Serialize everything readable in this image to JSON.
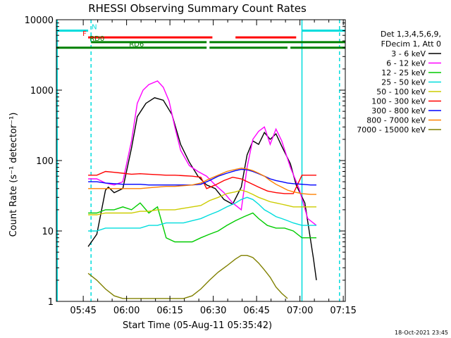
{
  "chart_data": {
    "type": "line",
    "title": "RHESSI Observing Summary Count Rates",
    "xlabel": "Start Time (05-Aug-11 05:35:42)",
    "ylabel": "Count Rate (s⁻¹ detector⁻¹)",
    "yscale": "log",
    "ylim": [
      1,
      10000
    ],
    "xlim": [
      0,
      100
    ],
    "x_unit": "minutes after 05:35:42",
    "x_ticks": [
      {
        "label": "05:45",
        "value": 9.3
      },
      {
        "label": "06:00",
        "value": 24.3
      },
      {
        "label": "06:15",
        "value": 39.3
      },
      {
        "label": "06:30",
        "value": 54.3
      },
      {
        "label": "06:45",
        "value": 69.3
      },
      {
        "label": "07:00",
        "value": 84.3
      },
      {
        "label": "07:15",
        "value": 99.3
      }
    ],
    "y_ticks": [
      {
        "label": "1",
        "value": 1
      },
      {
        "label": "10",
        "value": 10
      },
      {
        "label": "100",
        "value": 100
      },
      {
        "label": "1000",
        "value": 1000
      },
      {
        "label": "10000",
        "value": 10000
      }
    ],
    "legend_position": "right",
    "legend_header": [
      "Det 1,3,4,5,6,9,",
      "FDecim 1, Att 0"
    ],
    "series": [
      {
        "name": "3 - 6 keV",
        "color": "#000000",
        "points": [
          [
            11,
            6
          ],
          [
            14,
            9
          ],
          [
            17,
            38
          ],
          [
            18,
            42
          ],
          [
            20,
            35
          ],
          [
            23,
            40
          ],
          [
            26,
            150
          ],
          [
            28,
            420
          ],
          [
            31,
            650
          ],
          [
            34,
            780
          ],
          [
            37,
            720
          ],
          [
            40,
            450
          ],
          [
            43,
            170
          ],
          [
            46,
            95
          ],
          [
            49,
            60
          ],
          [
            52,
            45
          ],
          [
            55,
            40
          ],
          [
            58,
            28
          ],
          [
            61,
            24
          ],
          [
            64,
            42
          ],
          [
            66,
            120
          ],
          [
            68,
            190
          ],
          [
            70,
            170
          ],
          [
            72,
            250
          ],
          [
            74,
            200
          ],
          [
            76,
            240
          ],
          [
            78,
            160
          ],
          [
            81,
            90
          ],
          [
            83,
            45
          ],
          [
            86,
            25
          ],
          [
            89,
            4
          ],
          [
            90,
            2
          ]
        ]
      },
      {
        "name": "6 - 12 keV",
        "color": "#ff00ff",
        "points": [
          [
            11,
            55
          ],
          [
            14,
            55
          ],
          [
            17,
            48
          ],
          [
            20,
            45
          ],
          [
            23,
            50
          ],
          [
            26,
            190
          ],
          [
            28,
            650
          ],
          [
            30,
            1000
          ],
          [
            32,
            1200
          ],
          [
            35,
            1350
          ],
          [
            37,
            1100
          ],
          [
            39,
            700
          ],
          [
            41,
            300
          ],
          [
            43,
            140
          ],
          [
            46,
            85
          ],
          [
            49,
            70
          ],
          [
            52,
            60
          ],
          [
            55,
            45
          ],
          [
            58,
            35
          ],
          [
            61,
            25
          ],
          [
            64,
            20
          ],
          [
            66,
            80
          ],
          [
            68,
            200
          ],
          [
            70,
            260
          ],
          [
            72,
            300
          ],
          [
            74,
            170
          ],
          [
            76,
            280
          ],
          [
            78,
            190
          ],
          [
            81,
            80
          ],
          [
            84,
            40
          ],
          [
            87,
            15
          ],
          [
            90,
            12
          ]
        ]
      },
      {
        "name": "12 - 25 keV",
        "color": "#00cc00",
        "points": [
          [
            11,
            18
          ],
          [
            14,
            18
          ],
          [
            17,
            20
          ],
          [
            20,
            20
          ],
          [
            23,
            22
          ],
          [
            26,
            20
          ],
          [
            29,
            25
          ],
          [
            32,
            18
          ],
          [
            35,
            22
          ],
          [
            38,
            8
          ],
          [
            41,
            7
          ],
          [
            44,
            7
          ],
          [
            47,
            7
          ],
          [
            50,
            8
          ],
          [
            53,
            9
          ],
          [
            56,
            10
          ],
          [
            59,
            12
          ],
          [
            62,
            14
          ],
          [
            65,
            16
          ],
          [
            68,
            18
          ],
          [
            70,
            15
          ],
          [
            73,
            12
          ],
          [
            76,
            11
          ],
          [
            79,
            11
          ],
          [
            82,
            10
          ],
          [
            85,
            8
          ],
          [
            88,
            8
          ],
          [
            90,
            8
          ]
        ]
      },
      {
        "name": "25 - 50 keV",
        "color": "#00dddd",
        "points": [
          [
            11,
            10
          ],
          [
            14,
            10
          ],
          [
            17,
            11
          ],
          [
            20,
            11
          ],
          [
            23,
            11
          ],
          [
            26,
            11
          ],
          [
            29,
            11
          ],
          [
            32,
            12
          ],
          [
            35,
            12
          ],
          [
            38,
            13
          ],
          [
            41,
            13
          ],
          [
            44,
            13
          ],
          [
            47,
            14
          ],
          [
            50,
            15
          ],
          [
            53,
            17
          ],
          [
            56,
            19
          ],
          [
            59,
            22
          ],
          [
            62,
            25
          ],
          [
            64,
            28
          ],
          [
            66,
            30
          ],
          [
            68,
            28
          ],
          [
            70,
            24
          ],
          [
            72,
            20
          ],
          [
            74,
            18
          ],
          [
            76,
            16
          ],
          [
            78,
            15
          ],
          [
            80,
            14
          ],
          [
            82,
            13
          ],
          [
            85,
            12
          ],
          [
            88,
            12
          ],
          [
            90,
            12
          ]
        ]
      },
      {
        "name": "50 - 100 keV",
        "color": "#cccc00",
        "points": [
          [
            11,
            17
          ],
          [
            14,
            17
          ],
          [
            17,
            18
          ],
          [
            20,
            18
          ],
          [
            23,
            18
          ],
          [
            26,
            18
          ],
          [
            29,
            19
          ],
          [
            32,
            19
          ],
          [
            35,
            20
          ],
          [
            38,
            20
          ],
          [
            41,
            20
          ],
          [
            44,
            21
          ],
          [
            47,
            22
          ],
          [
            50,
            23
          ],
          [
            53,
            27
          ],
          [
            56,
            30
          ],
          [
            59,
            34
          ],
          [
            62,
            36
          ],
          [
            64,
            38
          ],
          [
            66,
            36
          ],
          [
            68,
            33
          ],
          [
            70,
            30
          ],
          [
            72,
            28
          ],
          [
            74,
            26
          ],
          [
            76,
            25
          ],
          [
            78,
            24
          ],
          [
            80,
            23
          ],
          [
            82,
            22
          ],
          [
            85,
            22
          ],
          [
            88,
            22
          ],
          [
            90,
            22
          ]
        ]
      },
      {
        "name": "100 - 300 keV",
        "color": "#ff0000",
        "points": [
          [
            11,
            62
          ],
          [
            14,
            62
          ],
          [
            17,
            70
          ],
          [
            20,
            68
          ],
          [
            23,
            66
          ],
          [
            26,
            64
          ],
          [
            29,
            65
          ],
          [
            32,
            64
          ],
          [
            35,
            63
          ],
          [
            38,
            62
          ],
          [
            41,
            62
          ],
          [
            44,
            61
          ],
          [
            47,
            60
          ],
          [
            50,
            58
          ],
          [
            52,
            40
          ],
          [
            55,
            45
          ],
          [
            58,
            52
          ],
          [
            61,
            58
          ],
          [
            64,
            55
          ],
          [
            67,
            48
          ],
          [
            70,
            42
          ],
          [
            73,
            37
          ],
          [
            76,
            35
          ],
          [
            79,
            34
          ],
          [
            82,
            34
          ],
          [
            85,
            62
          ],
          [
            88,
            62
          ],
          [
            90,
            62
          ]
        ]
      },
      {
        "name": "300 - 800 keV",
        "color": "#0000ff",
        "points": [
          [
            11,
            50
          ],
          [
            14,
            50
          ],
          [
            17,
            48
          ],
          [
            20,
            47
          ],
          [
            23,
            46
          ],
          [
            26,
            46
          ],
          [
            29,
            46
          ],
          [
            32,
            45
          ],
          [
            35,
            45
          ],
          [
            38,
            45
          ],
          [
            41,
            45
          ],
          [
            44,
            45
          ],
          [
            47,
            45
          ],
          [
            50,
            46
          ],
          [
            53,
            52
          ],
          [
            56,
            60
          ],
          [
            59,
            66
          ],
          [
            62,
            72
          ],
          [
            64,
            75
          ],
          [
            66,
            74
          ],
          [
            68,
            70
          ],
          [
            70,
            65
          ],
          [
            72,
            60
          ],
          [
            74,
            55
          ],
          [
            76,
            52
          ],
          [
            78,
            50
          ],
          [
            80,
            48
          ],
          [
            82,
            47
          ],
          [
            85,
            46
          ],
          [
            88,
            45
          ],
          [
            90,
            45
          ]
        ]
      },
      {
        "name": "800 - 7000 keV",
        "color": "#ff8000",
        "points": [
          [
            11,
            40
          ],
          [
            14,
            40
          ],
          [
            17,
            40
          ],
          [
            20,
            40
          ],
          [
            23,
            40
          ],
          [
            26,
            40
          ],
          [
            29,
            40
          ],
          [
            32,
            41
          ],
          [
            35,
            42
          ],
          [
            38,
            43
          ],
          [
            41,
            43
          ],
          [
            44,
            44
          ],
          [
            47,
            45
          ],
          [
            50,
            48
          ],
          [
            53,
            55
          ],
          [
            56,
            62
          ],
          [
            59,
            70
          ],
          [
            62,
            75
          ],
          [
            64,
            78
          ],
          [
            66,
            76
          ],
          [
            68,
            72
          ],
          [
            70,
            66
          ],
          [
            72,
            60
          ],
          [
            74,
            52
          ],
          [
            76,
            46
          ],
          [
            78,
            42
          ],
          [
            80,
            38
          ],
          [
            82,
            36
          ],
          [
            85,
            34
          ],
          [
            88,
            33
          ],
          [
            90,
            33
          ]
        ]
      },
      {
        "name": "7000 - 15000 keV",
        "color": "#808000",
        "points": [
          [
            11,
            2.5
          ],
          [
            14,
            2
          ],
          [
            17,
            1.5
          ],
          [
            20,
            1.2
          ],
          [
            23,
            1.1
          ],
          [
            26,
            1.1
          ],
          [
            29,
            1.1
          ],
          [
            32,
            1.1
          ],
          [
            35,
            1.1
          ],
          [
            38,
            1.1
          ],
          [
            41,
            1.1
          ],
          [
            44,
            1.1
          ],
          [
            47,
            1.2
          ],
          [
            50,
            1.5
          ],
          [
            53,
            2
          ],
          [
            56,
            2.6
          ],
          [
            59,
            3.2
          ],
          [
            62,
            4
          ],
          [
            64,
            4.5
          ],
          [
            66,
            4.5
          ],
          [
            68,
            4.2
          ],
          [
            70,
            3.5
          ],
          [
            72,
            2.8
          ],
          [
            74,
            2.2
          ],
          [
            76,
            1.6
          ],
          [
            78,
            1.3
          ],
          [
            80,
            1.1
          ]
        ]
      }
    ],
    "flags": [
      {
        "label": "N",
        "color": "#00dddd",
        "segments": [
          [
            0,
            11
          ],
          [
            85,
            100
          ]
        ],
        "value": 7000
      },
      {
        "label": "F",
        "color": "#ff0000",
        "segments": [
          [
            11,
            54
          ],
          [
            62,
            83
          ]
        ],
        "value": 5600
      },
      {
        "label": "RD0",
        "color": "#008000",
        "segments": [
          [
            12,
            52
          ],
          [
            53,
            100
          ]
        ],
        "value": 4800
      },
      {
        "label": "RD6",
        "color": "#008000",
        "segments": [
          [
            0,
            52
          ],
          [
            53,
            80
          ],
          [
            81,
            100
          ]
        ],
        "value": 4000
      }
    ],
    "vertical_lines": [
      {
        "color": "#00dddd",
        "style": "solid",
        "x": 0.3
      },
      {
        "color": "#00dddd",
        "style": "dashed",
        "x": 12
      },
      {
        "color": "#00dddd",
        "style": "solid",
        "x": 85
      },
      {
        "color": "#00dddd",
        "style": "dashed",
        "x": 98
      }
    ],
    "footer_timestamp": "18-Oct-2021 23:45"
  }
}
